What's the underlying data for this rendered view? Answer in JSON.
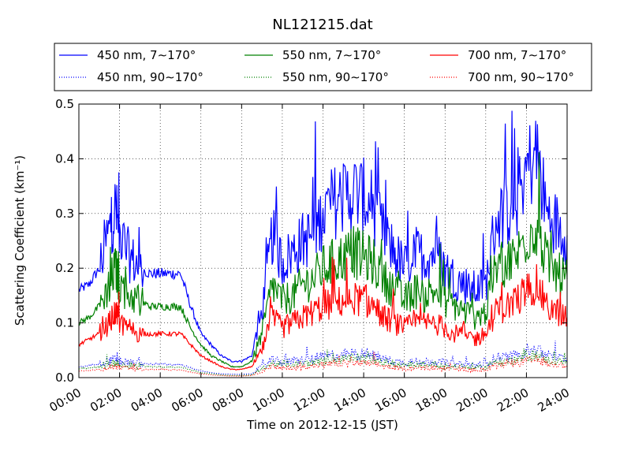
{
  "chart_data": {
    "type": "line",
    "title": "NL121215.dat",
    "xlabel": "Time on 2012-12-15 (JST)",
    "ylabel": "Scattering Coefficient (km⁻¹)",
    "xlim": [
      "00:00",
      "24:00"
    ],
    "ylim": [
      0,
      0.5
    ],
    "x_ticks": [
      "00:00",
      "02:00",
      "04:00",
      "06:00",
      "08:00",
      "10:00",
      "12:00",
      "14:00",
      "16:00",
      "18:00",
      "20:00",
      "22:00",
      "24:00"
    ],
    "y_ticks": [
      "0.0",
      "0.1",
      "0.2",
      "0.3",
      "0.4",
      "0.5"
    ],
    "grid": true,
    "legend_position": "top",
    "x_hours": [
      0,
      0.5,
      1,
      1.5,
      1.8,
      2,
      2.5,
      3,
      3.5,
      4,
      4.5,
      5,
      5.5,
      6,
      6.5,
      7,
      7.5,
      8,
      8.5,
      9,
      9.5,
      10,
      10.5,
      11,
      11.5,
      12,
      12.5,
      13,
      13.5,
      14,
      14.5,
      15,
      15.5,
      16,
      16.5,
      17,
      17.5,
      18,
      18.5,
      19,
      19.5,
      20,
      20.5,
      21,
      21.5,
      22,
      22.5,
      23,
      23.5,
      24
    ],
    "series": [
      {
        "name": "450 nm, 7∼170°",
        "color": "#0000ff",
        "style": "solid",
        "values": [
          0.16,
          0.17,
          0.2,
          0.27,
          0.31,
          0.26,
          0.22,
          0.2,
          0.19,
          0.19,
          0.19,
          0.19,
          0.13,
          0.08,
          0.06,
          0.04,
          0.03,
          0.03,
          0.04,
          0.12,
          0.26,
          0.21,
          0.23,
          0.25,
          0.26,
          0.3,
          0.32,
          0.33,
          0.34,
          0.33,
          0.31,
          0.26,
          0.23,
          0.2,
          0.23,
          0.22,
          0.23,
          0.2,
          0.18,
          0.17,
          0.16,
          0.17,
          0.29,
          0.3,
          0.32,
          0.38,
          0.41,
          0.3,
          0.28,
          0.26
        ]
      },
      {
        "name": "550 nm, 7∼170°",
        "color": "#008000",
        "style": "solid",
        "values": [
          0.1,
          0.11,
          0.13,
          0.17,
          0.2,
          0.17,
          0.15,
          0.14,
          0.13,
          0.13,
          0.13,
          0.13,
          0.09,
          0.06,
          0.04,
          0.03,
          0.02,
          0.02,
          0.03,
          0.08,
          0.17,
          0.14,
          0.15,
          0.17,
          0.18,
          0.2,
          0.21,
          0.22,
          0.23,
          0.22,
          0.21,
          0.18,
          0.16,
          0.14,
          0.16,
          0.15,
          0.16,
          0.14,
          0.13,
          0.12,
          0.11,
          0.12,
          0.2,
          0.21,
          0.22,
          0.26,
          0.28,
          0.21,
          0.19,
          0.18
        ]
      },
      {
        "name": "700 nm, 7∼170°",
        "color": "#ff0000",
        "style": "solid",
        "values": [
          0.06,
          0.07,
          0.08,
          0.1,
          0.12,
          0.1,
          0.09,
          0.08,
          0.08,
          0.08,
          0.08,
          0.08,
          0.06,
          0.04,
          0.03,
          0.02,
          0.015,
          0.015,
          0.02,
          0.05,
          0.11,
          0.09,
          0.1,
          0.11,
          0.12,
          0.13,
          0.135,
          0.14,
          0.145,
          0.14,
          0.13,
          0.11,
          0.1,
          0.09,
          0.1,
          0.1,
          0.1,
          0.09,
          0.08,
          0.08,
          0.07,
          0.08,
          0.12,
          0.13,
          0.14,
          0.16,
          0.17,
          0.13,
          0.12,
          0.11
        ]
      },
      {
        "name": "450 nm, 90∼170°",
        "color": "#0000ff",
        "style": "dotted",
        "values": [
          0.02,
          0.022,
          0.025,
          0.03,
          0.035,
          0.03,
          0.027,
          0.026,
          0.025,
          0.025,
          0.024,
          0.024,
          0.018,
          0.012,
          0.009,
          0.007,
          0.006,
          0.006,
          0.007,
          0.02,
          0.032,
          0.028,
          0.03,
          0.032,
          0.034,
          0.038,
          0.04,
          0.042,
          0.044,
          0.043,
          0.04,
          0.034,
          0.03,
          0.027,
          0.03,
          0.029,
          0.03,
          0.027,
          0.025,
          0.024,
          0.023,
          0.024,
          0.037,
          0.038,
          0.04,
          0.048,
          0.052,
          0.04,
          0.037,
          0.035
        ]
      },
      {
        "name": "550 nm, 90∼170°",
        "color": "#008000",
        "style": "dotted",
        "values": [
          0.016,
          0.018,
          0.02,
          0.024,
          0.028,
          0.024,
          0.022,
          0.021,
          0.02,
          0.02,
          0.019,
          0.019,
          0.014,
          0.009,
          0.007,
          0.005,
          0.004,
          0.004,
          0.005,
          0.016,
          0.026,
          0.022,
          0.024,
          0.026,
          0.027,
          0.03,
          0.032,
          0.034,
          0.035,
          0.034,
          0.032,
          0.027,
          0.024,
          0.021,
          0.024,
          0.023,
          0.024,
          0.021,
          0.02,
          0.019,
          0.018,
          0.019,
          0.029,
          0.03,
          0.032,
          0.038,
          0.042,
          0.032,
          0.03,
          0.028
        ]
      },
      {
        "name": "700 nm, 90∼170°",
        "color": "#ff0000",
        "style": "dotted",
        "values": [
          0.012,
          0.013,
          0.015,
          0.018,
          0.021,
          0.018,
          0.016,
          0.015,
          0.015,
          0.015,
          0.014,
          0.014,
          0.01,
          0.007,
          0.005,
          0.004,
          0.003,
          0.003,
          0.004,
          0.012,
          0.02,
          0.017,
          0.018,
          0.02,
          0.021,
          0.023,
          0.025,
          0.026,
          0.027,
          0.026,
          0.025,
          0.021,
          0.018,
          0.016,
          0.018,
          0.018,
          0.018,
          0.016,
          0.015,
          0.015,
          0.014,
          0.015,
          0.022,
          0.023,
          0.025,
          0.03,
          0.033,
          0.025,
          0.023,
          0.022
        ]
      }
    ]
  }
}
